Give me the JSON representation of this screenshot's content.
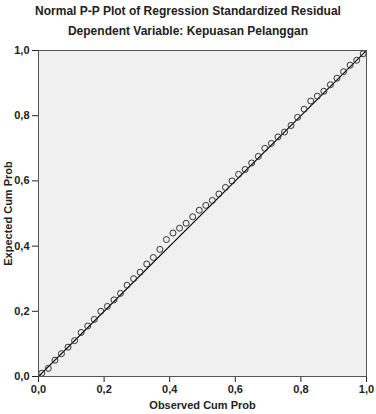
{
  "chart_data": {
    "type": "scatter",
    "title": "Normal P-P Plot of Regression Standardized Residual",
    "subtitle": "Dependent Variable: Kepuasan Pelanggan",
    "x_label": "Observed Cum Prob",
    "y_label": "Expected Cum Prob",
    "x": [
      0.01,
      0.03,
      0.05,
      0.07,
      0.09,
      0.11,
      0.13,
      0.15,
      0.17,
      0.19,
      0.21,
      0.23,
      0.25,
      0.27,
      0.29,
      0.31,
      0.33,
      0.35,
      0.37,
      0.39,
      0.41,
      0.43,
      0.45,
      0.47,
      0.49,
      0.51,
      0.53,
      0.55,
      0.57,
      0.59,
      0.61,
      0.63,
      0.65,
      0.67,
      0.69,
      0.71,
      0.73,
      0.75,
      0.77,
      0.79,
      0.81,
      0.83,
      0.85,
      0.87,
      0.89,
      0.91,
      0.93,
      0.95,
      0.97,
      0.99
    ],
    "values": [
      0.01,
      0.025,
      0.05,
      0.07,
      0.09,
      0.11,
      0.135,
      0.155,
      0.175,
      0.2,
      0.215,
      0.235,
      0.255,
      0.28,
      0.3,
      0.32,
      0.345,
      0.365,
      0.39,
      0.42,
      0.44,
      0.455,
      0.47,
      0.49,
      0.51,
      0.525,
      0.54,
      0.56,
      0.58,
      0.6,
      0.62,
      0.635,
      0.655,
      0.675,
      0.7,
      0.715,
      0.735,
      0.75,
      0.77,
      0.795,
      0.82,
      0.845,
      0.86,
      0.875,
      0.895,
      0.915,
      0.935,
      0.955,
      0.97,
      0.99
    ],
    "reference_line": {
      "x": [
        0,
        1
      ],
      "y": [
        0,
        1
      ]
    },
    "marker": "open_circle",
    "color": "#333333",
    "xlim": [
      0,
      1
    ],
    "ylim": [
      0,
      1
    ],
    "xticks": [
      {
        "value": 0,
        "label": "0,0"
      },
      {
        "value": 0.2,
        "label": "0,2"
      },
      {
        "value": 0.4,
        "label": "0,4"
      },
      {
        "value": 0.6,
        "label": "0,6"
      },
      {
        "value": 0.8,
        "label": "0,8"
      },
      {
        "value": 1,
        "label": "1,0"
      }
    ],
    "yticks": [
      {
        "value": 0,
        "label": "0,0"
      },
      {
        "value": 0.2,
        "label": "0,2"
      },
      {
        "value": 0.4,
        "label": "0,4"
      },
      {
        "value": 0.6,
        "label": "0,6"
      },
      {
        "value": 0.8,
        "label": "0,8"
      },
      {
        "value": 1,
        "label": "1,0"
      }
    ],
    "grid": false
  }
}
